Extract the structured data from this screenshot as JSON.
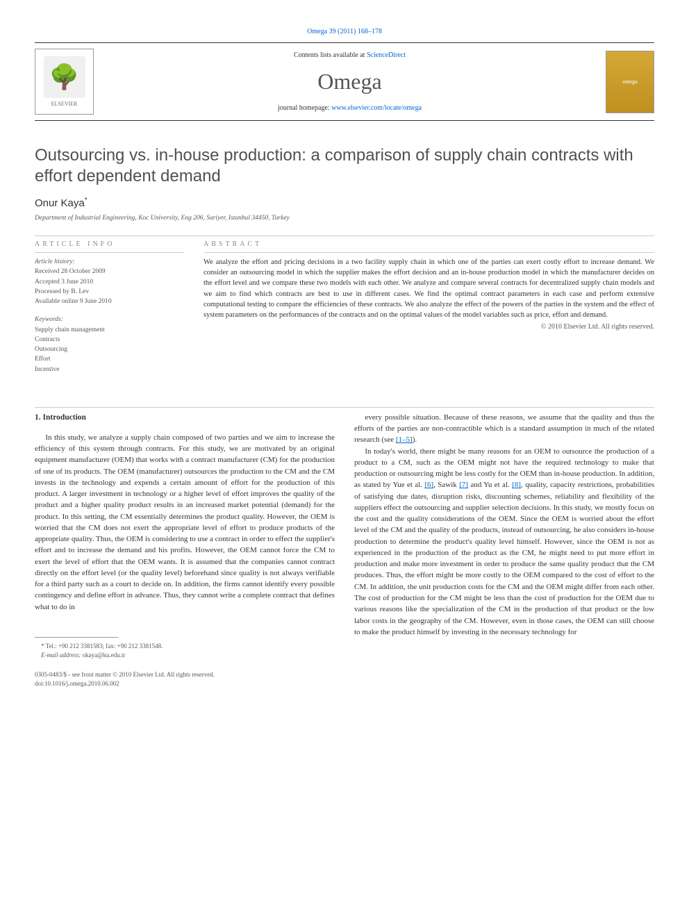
{
  "top_link": "Omega 39 (2011) 168–178",
  "masthead": {
    "contents_prefix": "Contents lists available at ",
    "contents_link": "ScienceDirect",
    "journal": "Omega",
    "homepage_prefix": "journal homepage: ",
    "homepage_link": "www.elsevier.com/locate/omega",
    "elsevier_label": "ELSEVIER",
    "cover_label": "omega"
  },
  "title": "Outsourcing vs. in-house production: a comparison of supply chain contracts with effort dependent demand",
  "author": "Onur Kaya",
  "author_marker": "*",
  "affiliation": "Department of Industrial Engineering, Koc University, Eng 206, Sariyer, Istanbul 34450, Turkey",
  "info": {
    "heading": "ARTICLE INFO",
    "history_label": "Article history:",
    "received": "Received 28 October 2009",
    "accepted": "Accepted 3 June 2010",
    "processed": "Processed by B. Lev",
    "online": "Available online 9 June 2010",
    "keywords_label": "Keywords:",
    "keywords": [
      "Supply chain management",
      "Contracts",
      "Outsourcing",
      "Effort",
      "Incentive"
    ]
  },
  "abstract": {
    "heading": "ABSTRACT",
    "text": "We analyze the effort and pricing decisions in a two facility supply chain in which one of the parties can exert costly effort to increase demand. We consider an outsourcing model in which the supplier makes the effort decision and an in-house production model in which the manufacturer decides on the effort level and we compare these two models with each other. We analyze and compare several contracts for decentralized supply chain models and we aim to find which contracts are best to use in different cases. We find the optimal contract parameters in each case and perform extensive computational testing to compare the efficiencies of these contracts. We also analyze the effect of the powers of the parties in the system and the effect of system parameters on the performances of the contracts and on the optimal values of the model variables such as price, effort and demand.",
    "copyright": "© 2010 Elsevier Ltd. All rights reserved."
  },
  "body": {
    "section_heading": "1. Introduction",
    "col1": [
      "In this study, we analyze a supply chain composed of two parties and we aim to increase the efficiency of this system through contracts. For this study, we are motivated by an original equipment manufacturer (OEM) that works with a contract manufacturer (CM) for the production of one of its products. The OEM (manufacturer) outsources the production to the CM and the CM invests in the technology and expends a certain amount of effort for the production of this product. A larger investment in technology or a higher level of effort improves the quality of the product and a higher quality product results in an increased market potential (demand) for the product. In this setting, the CM essentially determines the product quality. However, the OEM is worried that the CM does not exert the appropriate level of effort to produce products of the appropriate quality. Thus, the OEM is considering to use a contract in order to effect the supplier's effort and to increase the demand and his profits. However, the OEM cannot force the CM to exert the level of effort that the OEM wants. It is assumed that the companies cannot contract directly on the effort level (or the quality level) beforehand since quality is not always verifiable for a third party such as a court to decide on. In addition, the firms cannot identify every possible contingency and define effort in advance. Thus, they cannot write a complete contract that defines what to do in"
    ],
    "col2": [
      "every possible situation. Because of these reasons, we assume that the quality and thus the efforts of the parties are non-contractible which is a standard assumption in much of the related research (see ",
      "[1–5]",
      ").",
      "In today's world, there might be many reasons for an OEM to outsource the production of a product to a CM, such as the OEM might not have the required technology to make that production or outsourcing might be less costly for the OEM than in-house production. In addition, as stated by Yue et al. ",
      "[6]",
      ", Sawik ",
      "[7]",
      " and Yu et al. ",
      "[8]",
      ", quality, capacity restrictions, probabilities of satisfying due dates, disruption risks, discounting schemes, reliability and flexibility of the suppliers effect the outsourcing and supplier selection decisions. In this study, we mostly focus on the cost and the quality considerations of the OEM. Since the OEM is worried about the effort level of the CM and the quality of the products, instead of outsourcing, he also considers in-house production to determine the product's quality level himself. However, since the OEM is not as experienced in the production of the product as the CM, he might need to put more effort in production and make more investment in order to produce the same quality product that the CM produces. Thus, the effort might be more costly to the OEM compared to the cost of effort to the CM. In addition, the unit production costs for the CM and the OEM might differ from each other. The cost of production for the CM might be less than the cost of production for the OEM due to various reasons like the specialization of the CM in the production of that product or the low labor costs in the geography of the CM. However, even in those cases, the OEM can still choose to make the product himself by investing in the necessary technology for"
    ]
  },
  "footnote": {
    "tel": "* Tel.: +90 212 3381583; fax: +90 212 3381548.",
    "email_label": "E-mail address: ",
    "email": "okaya@ku.edu.tr"
  },
  "doi": {
    "front_matter": "0305-0483/$ - see front matter © 2010 Elsevier Ltd. All rights reserved.",
    "doi_line": "doi:10.1016/j.omega.2010.06.002"
  },
  "colors": {
    "link": "#0066cc",
    "text": "#333333",
    "muted": "#555555",
    "heading_gray": "#505050",
    "info_gray": "#888888",
    "cover_bg": "#d4a838"
  }
}
